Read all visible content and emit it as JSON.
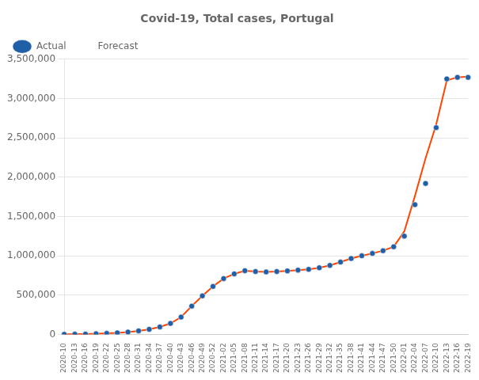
{
  "chart_data": {
    "type": "line",
    "title": "Covid-19, Total cases, Portugal",
    "categories": [
      "2020-10",
      "2020-13",
      "2020-16",
      "2020-19",
      "2020-22",
      "2020-25",
      "2020-28",
      "2020-31",
      "2020-34",
      "2020-37",
      "2020-40",
      "2020-43",
      "2020-46",
      "2020-49",
      "2020-52",
      "2021-02",
      "2021-05",
      "2021-08",
      "2021-11",
      "2021-14",
      "2021-17",
      "2021-20",
      "2021-23",
      "2021-26",
      "2021-29",
      "2021-32",
      "2021-35",
      "2021-38",
      "2021-41",
      "2021-44",
      "2021-47",
      "2021-50",
      "2022-01",
      "2022-04",
      "2022-07",
      "2022-10",
      "2022-13",
      "2022-16",
      "2022-19"
    ],
    "series": [
      {
        "name": "Forecast",
        "type": "line",
        "color": "#FF4500",
        "marker": "none",
        "values": [
          1500,
          3000,
          5000,
          8000,
          13000,
          20000,
          30000,
          45000,
          65000,
          95000,
          140000,
          220000,
          360000,
          490000,
          610000,
          710000,
          770000,
          810000,
          800000,
          795000,
          800000,
          808000,
          818000,
          828000,
          848000,
          878000,
          920000,
          965000,
          1000000,
          1030000,
          1065000,
          1115000,
          1310000,
          1760000,
          2240000,
          2670000,
          3230000,
          3270000,
          3280000
        ]
      },
      {
        "name": "Actual",
        "type": "scatter",
        "color": "#1E5FA8",
        "marker": "circle",
        "values": [
          1500,
          3000,
          5000,
          8000,
          13000,
          20000,
          30000,
          45000,
          65000,
          95000,
          140000,
          220000,
          360000,
          490000,
          610000,
          710000,
          770000,
          810000,
          800000,
          795000,
          800000,
          808000,
          818000,
          828000,
          848000,
          878000,
          920000,
          965000,
          1000000,
          1030000,
          1065000,
          1115000,
          1250000,
          1650000,
          1920000,
          2630000,
          3250000,
          3270000,
          3270000
        ]
      }
    ],
    "ylim": [
      0,
      3500000
    ],
    "yticks": [
      0,
      {
        "value": 500000,
        "label": "500,000"
      },
      {
        "value": 1000000,
        "label": "1,000,000"
      },
      {
        "value": 1500000,
        "label": "1,500,000"
      },
      {
        "value": 2000000,
        "label": "2,000,000"
      },
      {
        "value": 2500000,
        "label": "2,500,000"
      },
      {
        "value": 3000000,
        "label": "3,000,000"
      },
      {
        "value": 3500000,
        "label": "3,500,000"
      }
    ],
    "grid": "y",
    "legend": "upper left"
  }
}
